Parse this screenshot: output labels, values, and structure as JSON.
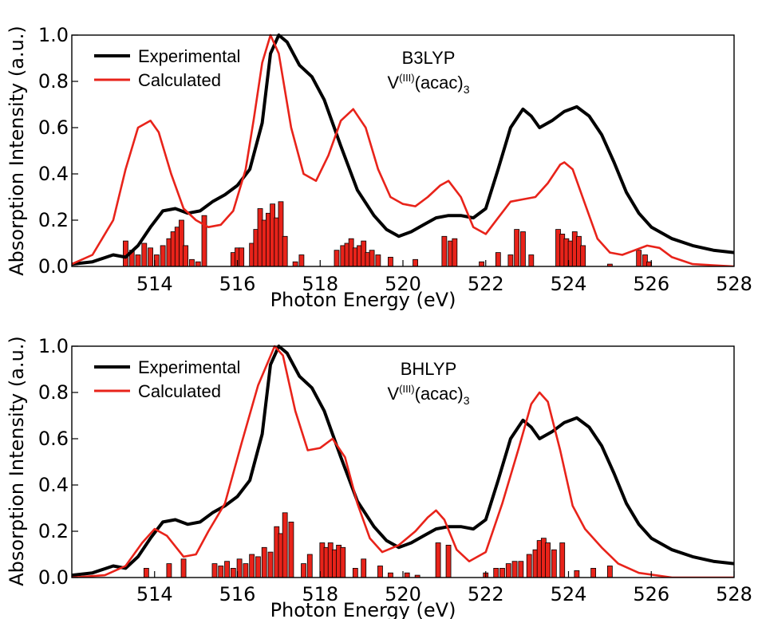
{
  "colors": {
    "experimental": "#000000",
    "calculated": "#e8231a",
    "bars": "#e8231a"
  },
  "chart_data": [
    {
      "type": "line",
      "title": "",
      "annotation": {
        "method": "B3LYP",
        "compound_main": "V",
        "compound_sup": "(III)",
        "compound_rest": "(acac)",
        "compound_sub": "3"
      },
      "xlabel": "Photon Energy (eV)",
      "ylabel": "Absorption Intensity (a.u.)",
      "xlim": [
        512,
        528
      ],
      "ylim": [
        0,
        1.0
      ],
      "xticks": [
        514,
        516,
        518,
        520,
        522,
        524,
        526,
        528
      ],
      "yticks": [
        0.0,
        0.2,
        0.4,
        0.6,
        0.8,
        1.0
      ],
      "legend_position": "top-left",
      "series": [
        {
          "name": "Experimental",
          "color": "#000000",
          "x": [
            512.0,
            512.5,
            513.0,
            513.3,
            513.6,
            513.9,
            514.2,
            514.5,
            514.8,
            515.1,
            515.4,
            515.7,
            516.0,
            516.3,
            516.6,
            516.8,
            517.0,
            517.2,
            517.5,
            517.8,
            518.1,
            518.5,
            518.9,
            519.3,
            519.6,
            519.9,
            520.2,
            520.5,
            520.8,
            521.1,
            521.4,
            521.7,
            522.0,
            522.3,
            522.6,
            522.9,
            523.1,
            523.3,
            523.6,
            523.9,
            524.2,
            524.5,
            524.8,
            525.1,
            525.4,
            525.7,
            526.0,
            526.5,
            527.0,
            527.5,
            528.0
          ],
          "y": [
            0.01,
            0.02,
            0.05,
            0.04,
            0.09,
            0.17,
            0.24,
            0.25,
            0.23,
            0.24,
            0.28,
            0.31,
            0.35,
            0.42,
            0.62,
            0.92,
            1.0,
            0.97,
            0.87,
            0.82,
            0.72,
            0.52,
            0.33,
            0.22,
            0.16,
            0.13,
            0.15,
            0.18,
            0.21,
            0.22,
            0.22,
            0.21,
            0.25,
            0.42,
            0.6,
            0.68,
            0.65,
            0.6,
            0.63,
            0.67,
            0.69,
            0.65,
            0.57,
            0.45,
            0.32,
            0.23,
            0.17,
            0.12,
            0.09,
            0.07,
            0.06
          ]
        },
        {
          "name": "Calculated",
          "color": "#e8231a",
          "x": [
            512.0,
            512.5,
            513.0,
            513.3,
            513.6,
            513.9,
            514.1,
            514.4,
            514.7,
            515.0,
            515.3,
            515.6,
            515.9,
            516.2,
            516.4,
            516.6,
            516.8,
            517.0,
            517.3,
            517.6,
            517.9,
            518.2,
            518.5,
            518.8,
            519.1,
            519.4,
            519.7,
            520.0,
            520.3,
            520.6,
            520.9,
            521.1,
            521.4,
            521.7,
            522.0,
            522.3,
            522.6,
            522.9,
            523.2,
            523.5,
            523.8,
            523.9,
            524.1,
            524.4,
            524.7,
            525.0,
            525.3,
            525.6,
            525.9,
            526.2,
            526.5,
            527.0,
            528.0
          ],
          "y": [
            0.01,
            0.05,
            0.2,
            0.42,
            0.6,
            0.63,
            0.58,
            0.4,
            0.25,
            0.2,
            0.17,
            0.18,
            0.24,
            0.42,
            0.64,
            0.88,
            1.0,
            0.92,
            0.6,
            0.4,
            0.37,
            0.48,
            0.63,
            0.68,
            0.6,
            0.42,
            0.3,
            0.27,
            0.26,
            0.3,
            0.35,
            0.37,
            0.3,
            0.17,
            0.14,
            0.21,
            0.28,
            0.29,
            0.3,
            0.36,
            0.44,
            0.45,
            0.42,
            0.27,
            0.12,
            0.06,
            0.05,
            0.07,
            0.09,
            0.08,
            0.04,
            0.01,
            0.0
          ]
        }
      ],
      "sticks": {
        "x": [
          513.3,
          513.45,
          513.6,
          513.75,
          513.9,
          514.05,
          514.2,
          514.35,
          514.45,
          514.55,
          514.65,
          514.75,
          514.9,
          515.05,
          515.2,
          515.9,
          516.0,
          516.1,
          516.35,
          516.45,
          516.55,
          516.65,
          516.75,
          516.85,
          516.95,
          517.05,
          517.15,
          517.4,
          517.55,
          518.4,
          518.55,
          518.65,
          518.75,
          518.85,
          518.95,
          519.05,
          519.15,
          519.25,
          519.4,
          519.7,
          520.3,
          521.0,
          521.15,
          521.25,
          521.9,
          522.3,
          522.6,
          522.75,
          522.9,
          523.1,
          523.75,
          523.85,
          523.95,
          524.05,
          524.15,
          524.25,
          524.35,
          525.0,
          525.7,
          525.85,
          525.95
        ],
        "y": [
          0.11,
          0.07,
          0.05,
          0.1,
          0.08,
          0.05,
          0.09,
          0.12,
          0.15,
          0.17,
          0.2,
          0.09,
          0.03,
          0.02,
          0.22,
          0.06,
          0.08,
          0.08,
          0.1,
          0.16,
          0.25,
          0.2,
          0.23,
          0.27,
          0.21,
          0.28,
          0.13,
          0.02,
          0.05,
          0.07,
          0.09,
          0.1,
          0.12,
          0.08,
          0.09,
          0.11,
          0.06,
          0.07,
          0.05,
          0.04,
          0.03,
          0.13,
          0.11,
          0.12,
          0.02,
          0.06,
          0.05,
          0.16,
          0.15,
          0.05,
          0.16,
          0.14,
          0.12,
          0.11,
          0.15,
          0.13,
          0.09,
          0.01,
          0.07,
          0.05,
          0.02
        ]
      }
    },
    {
      "type": "line",
      "title": "",
      "annotation": {
        "method": "BHLYP",
        "compound_main": "V",
        "compound_sup": "(III)",
        "compound_rest": "(acac)",
        "compound_sub": "3"
      },
      "xlabel": "Photon Energy (eV)",
      "ylabel": "Absorption Intensity (a.u.)",
      "xlim": [
        512,
        528
      ],
      "ylim": [
        0,
        1.0
      ],
      "xticks": [
        514,
        516,
        518,
        520,
        522,
        524,
        526,
        528
      ],
      "yticks": [
        0.0,
        0.2,
        0.4,
        0.6,
        0.8,
        1.0
      ],
      "legend_position": "top-left",
      "series": [
        {
          "name": "Experimental",
          "color": "#000000",
          "x": [
            512.0,
            512.5,
            513.0,
            513.3,
            513.6,
            513.9,
            514.2,
            514.5,
            514.8,
            515.1,
            515.4,
            515.7,
            516.0,
            516.3,
            516.6,
            516.8,
            517.0,
            517.2,
            517.5,
            517.8,
            518.1,
            518.5,
            518.9,
            519.3,
            519.6,
            519.9,
            520.2,
            520.5,
            520.8,
            521.1,
            521.4,
            521.7,
            522.0,
            522.3,
            522.6,
            522.9,
            523.1,
            523.3,
            523.6,
            523.9,
            524.2,
            524.5,
            524.8,
            525.1,
            525.4,
            525.7,
            526.0,
            526.5,
            527.0,
            527.5,
            528.0
          ],
          "y": [
            0.01,
            0.02,
            0.05,
            0.04,
            0.09,
            0.17,
            0.24,
            0.25,
            0.23,
            0.24,
            0.28,
            0.31,
            0.35,
            0.42,
            0.62,
            0.92,
            1.0,
            0.97,
            0.87,
            0.82,
            0.72,
            0.52,
            0.33,
            0.22,
            0.16,
            0.13,
            0.15,
            0.18,
            0.21,
            0.22,
            0.22,
            0.21,
            0.25,
            0.42,
            0.6,
            0.68,
            0.65,
            0.6,
            0.63,
            0.67,
            0.69,
            0.65,
            0.57,
            0.45,
            0.32,
            0.23,
            0.17,
            0.12,
            0.09,
            0.07,
            0.06
          ]
        },
        {
          "name": "Calculated",
          "color": "#e8231a",
          "x": [
            512.0,
            512.8,
            513.3,
            513.7,
            514.0,
            514.3,
            514.7,
            515.0,
            515.3,
            515.7,
            516.1,
            516.5,
            516.9,
            517.1,
            517.4,
            517.7,
            518.0,
            518.3,
            518.6,
            518.9,
            519.2,
            519.5,
            519.9,
            520.3,
            520.6,
            520.8,
            521.0,
            521.3,
            521.6,
            522.0,
            522.4,
            522.8,
            523.1,
            523.3,
            523.5,
            523.8,
            524.1,
            524.4,
            524.8,
            525.2,
            525.7,
            526.5,
            528.0
          ],
          "y": [
            0.0,
            0.01,
            0.05,
            0.15,
            0.21,
            0.18,
            0.09,
            0.1,
            0.2,
            0.32,
            0.58,
            0.83,
            1.0,
            0.96,
            0.72,
            0.55,
            0.56,
            0.6,
            0.52,
            0.32,
            0.17,
            0.11,
            0.14,
            0.2,
            0.26,
            0.29,
            0.25,
            0.12,
            0.07,
            0.11,
            0.32,
            0.56,
            0.75,
            0.8,
            0.76,
            0.55,
            0.31,
            0.21,
            0.13,
            0.06,
            0.02,
            0.0,
            0.0
          ]
        }
      ],
      "sticks": {
        "x": [
          513.8,
          514.35,
          514.7,
          515.45,
          515.6,
          515.75,
          515.9,
          516.05,
          516.2,
          516.35,
          516.5,
          516.65,
          516.8,
          516.95,
          517.05,
          517.15,
          517.3,
          517.6,
          517.75,
          518.05,
          518.15,
          518.25,
          518.35,
          518.45,
          518.55,
          518.85,
          519.05,
          519.45,
          519.7,
          520.1,
          520.35,
          520.85,
          521.1,
          522.0,
          522.25,
          522.4,
          522.55,
          522.7,
          522.85,
          523.05,
          523.2,
          523.3,
          523.4,
          523.5,
          523.65,
          523.85,
          524.2,
          524.6,
          525.0
        ],
        "y": [
          0.04,
          0.06,
          0.08,
          0.06,
          0.05,
          0.07,
          0.04,
          0.08,
          0.06,
          0.1,
          0.09,
          0.13,
          0.11,
          0.22,
          0.19,
          0.28,
          0.24,
          0.06,
          0.1,
          0.15,
          0.13,
          0.15,
          0.12,
          0.14,
          0.13,
          0.04,
          0.08,
          0.05,
          0.02,
          0.02,
          0.01,
          0.15,
          0.14,
          0.02,
          0.04,
          0.04,
          0.06,
          0.07,
          0.07,
          0.1,
          0.12,
          0.16,
          0.17,
          0.15,
          0.12,
          0.15,
          0.03,
          0.04,
          0.05
        ]
      }
    }
  ]
}
